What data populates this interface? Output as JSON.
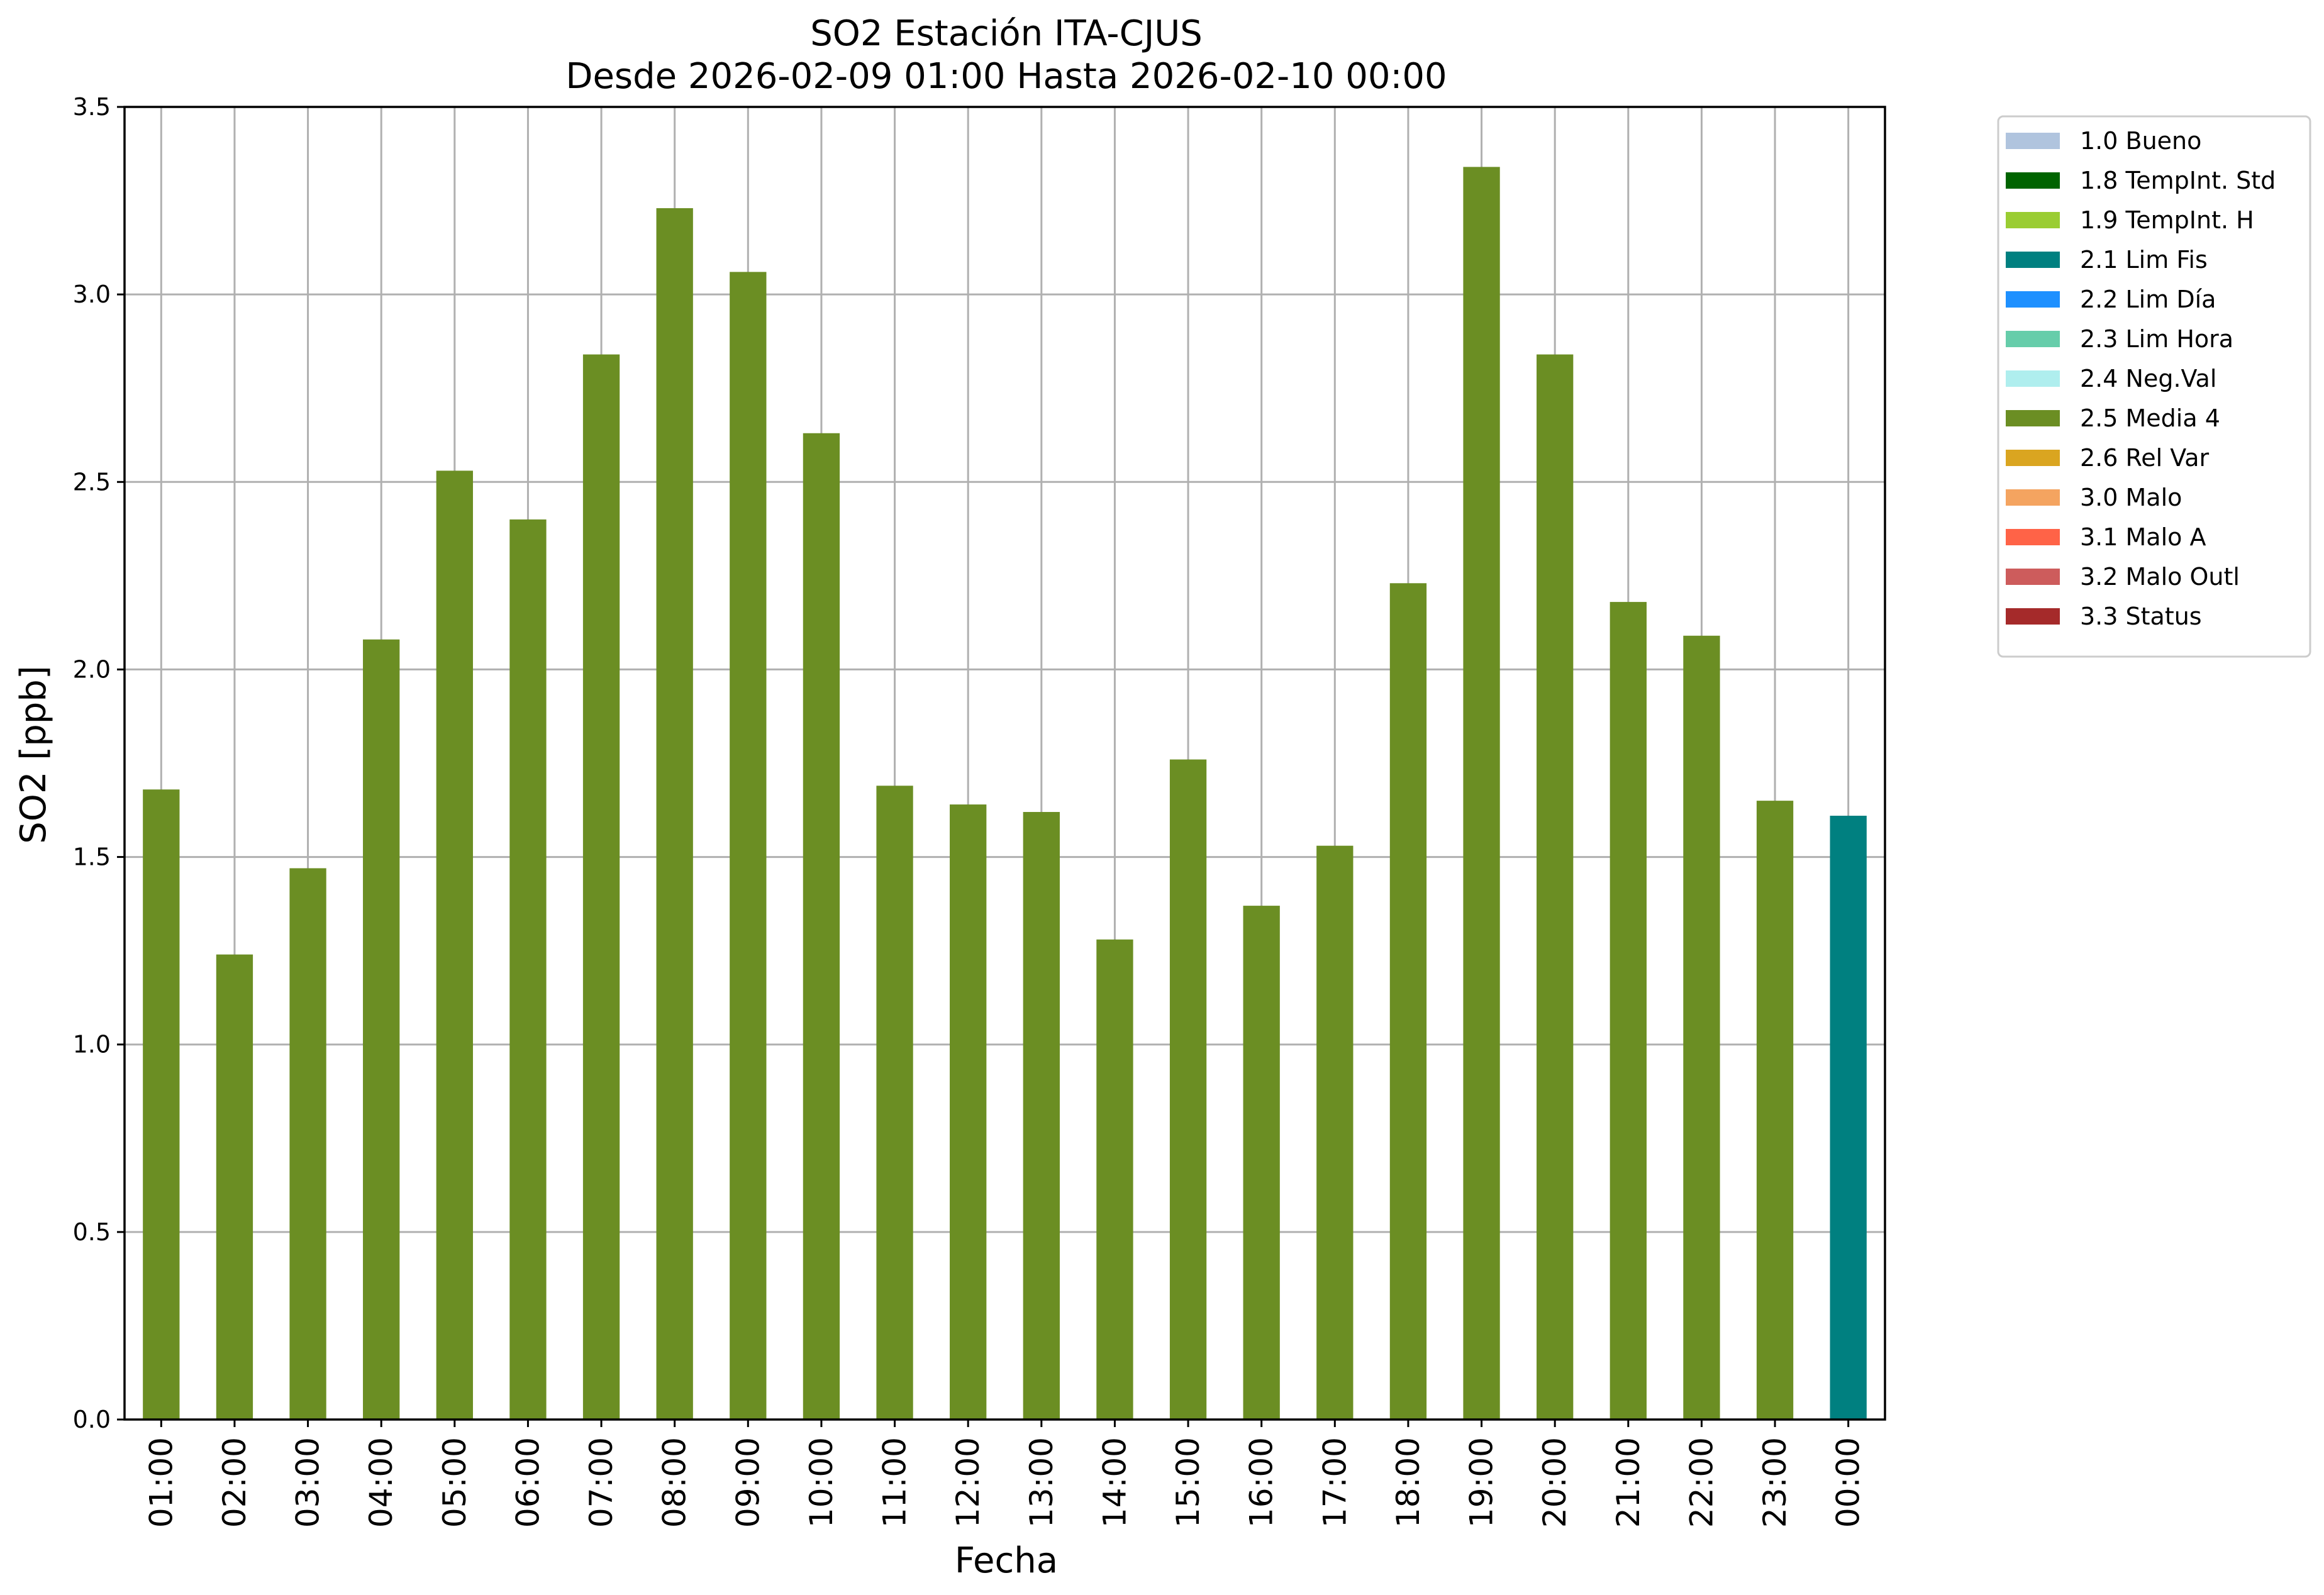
{
  "chart_data": {
    "type": "bar",
    "title": "SO2 Estación ITA-CJUS",
    "subtitle": "Desde 2026-02-09 01:00 Hasta 2026-02-10 00:00",
    "xlabel": "Fecha",
    "ylabel": "SO2 [ppb]",
    "ylim": [
      0,
      3.5
    ],
    "yticks": [
      "0.0",
      "0.5",
      "1.0",
      "1.5",
      "2.0",
      "2.5",
      "3.0",
      "3.5"
    ],
    "grid": true,
    "legend_placement": "outside top-right",
    "categories": [
      "01:00",
      "02:00",
      "03:00",
      "04:00",
      "05:00",
      "06:00",
      "07:00",
      "08:00",
      "09:00",
      "10:00",
      "11:00",
      "12:00",
      "13:00",
      "14:00",
      "15:00",
      "16:00",
      "17:00",
      "18:00",
      "19:00",
      "20:00",
      "21:00",
      "22:00",
      "23:00",
      "00:00"
    ],
    "values": [
      1.68,
      1.24,
      1.47,
      2.08,
      2.53,
      2.4,
      2.84,
      3.23,
      3.06,
      2.63,
      1.69,
      1.64,
      1.62,
      1.28,
      1.76,
      1.37,
      1.53,
      2.23,
      3.34,
      2.84,
      2.18,
      2.09,
      1.65,
      1.61
    ],
    "flags": [
      "2.5 Media 4",
      "2.5 Media 4",
      "2.5 Media 4",
      "2.5 Media 4",
      "2.5 Media 4",
      "2.5 Media 4",
      "2.5 Media 4",
      "2.5 Media 4",
      "2.5 Media 4",
      "2.5 Media 4",
      "2.5 Media 4",
      "2.5 Media 4",
      "2.5 Media 4",
      "2.5 Media 4",
      "2.5 Media 4",
      "2.5 Media 4",
      "2.5 Media 4",
      "2.5 Media 4",
      "2.5 Media 4",
      "2.5 Media 4",
      "2.5 Media 4",
      "2.5 Media 4",
      "2.5 Media 4",
      "2.1 Lim Fis"
    ],
    "legend": [
      {
        "label": "1.0 Bueno",
        "color": "#b0c4de"
      },
      {
        "label": "1.8 TempInt. Std",
        "color": "#006400"
      },
      {
        "label": "1.9 TempInt. H",
        "color": "#9acd32"
      },
      {
        "label": "2.1 Lim Fis",
        "color": "#008080"
      },
      {
        "label": "2.2 Lim Día",
        "color": "#1e90ff"
      },
      {
        "label": "2.3 Lim Hora",
        "color": "#66cdaa"
      },
      {
        "label": "2.4 Neg.Val",
        "color": "#afeeee"
      },
      {
        "label": "2.5 Media 4",
        "color": "#6b8e23"
      },
      {
        "label": "2.6 Rel Var",
        "color": "#daa520"
      },
      {
        "label": "3.0 Malo",
        "color": "#f4a460"
      },
      {
        "label": "3.1 Malo A",
        "color": "#ff6347"
      },
      {
        "label": "3.2 Malo Outl",
        "color": "#cd5c5c"
      },
      {
        "label": "3.3 Status",
        "color": "#a52a2a"
      }
    ]
  }
}
